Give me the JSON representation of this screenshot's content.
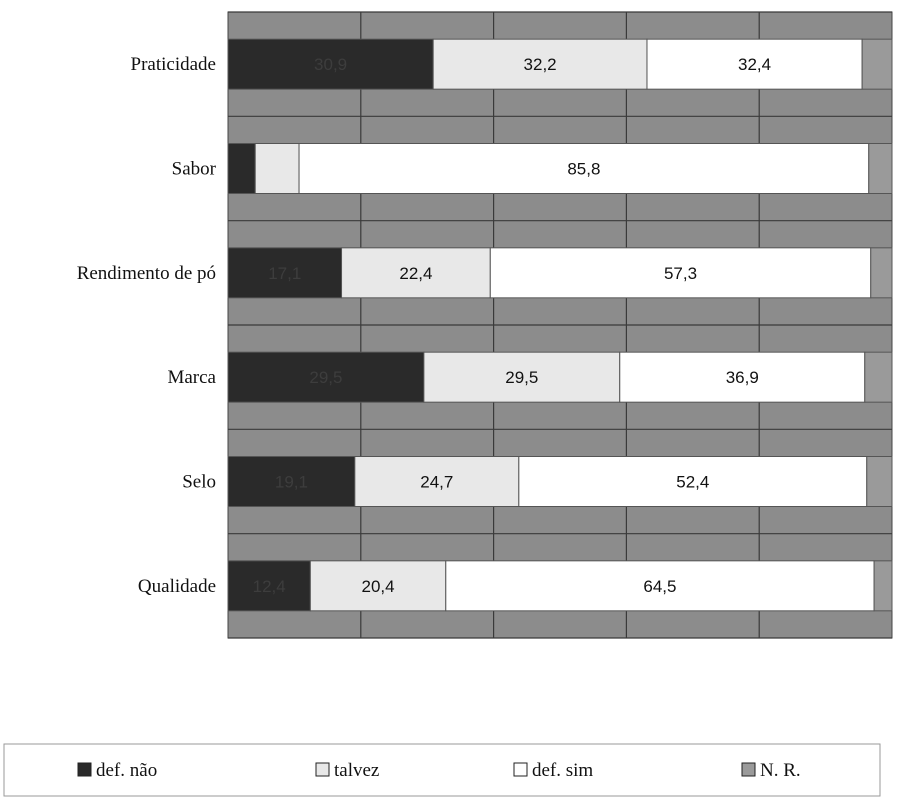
{
  "chart_data": {
    "type": "bar",
    "orientation": "horizontal",
    "stacked": true,
    "categories": [
      "Praticidade",
      "Sabor",
      "Rendimento de pó",
      "Marca",
      "Selo",
      "Qualidade"
    ],
    "series": [
      {
        "name": "def. não",
        "values": [
          30.9,
          4.1,
          17.1,
          29.5,
          19.1,
          12.4
        ],
        "color": "#2a2a2a",
        "labels": [
          "30,9",
          "",
          "17,1",
          "29,5",
          "19,1",
          "12,4"
        ]
      },
      {
        "name": "talvez",
        "values": [
          32.2,
          6.6,
          22.4,
          29.5,
          24.7,
          20.4
        ],
        "color": "#e8e8e8",
        "labels": [
          "32,2",
          "",
          "22,4",
          "29,5",
          "24,7",
          "20,4"
        ]
      },
      {
        "name": "def. sim",
        "values": [
          32.4,
          85.8,
          57.3,
          36.9,
          52.4,
          64.5
        ],
        "color": "#ffffff",
        "labels": [
          "32,4",
          "85,8",
          "57,3",
          "36,9",
          "52,4",
          "64,5"
        ]
      },
      {
        "name": "N. R.",
        "values": [
          4.5,
          3.5,
          3.2,
          4.1,
          3.8,
          2.7
        ],
        "color": "#9a9a9a",
        "labels": [
          "",
          "",
          "",
          "",
          "",
          ""
        ]
      }
    ],
    "xlim": [
      0,
      100
    ],
    "grid": true,
    "legend": "bottom",
    "plot_background": "#8c8c8c"
  }
}
